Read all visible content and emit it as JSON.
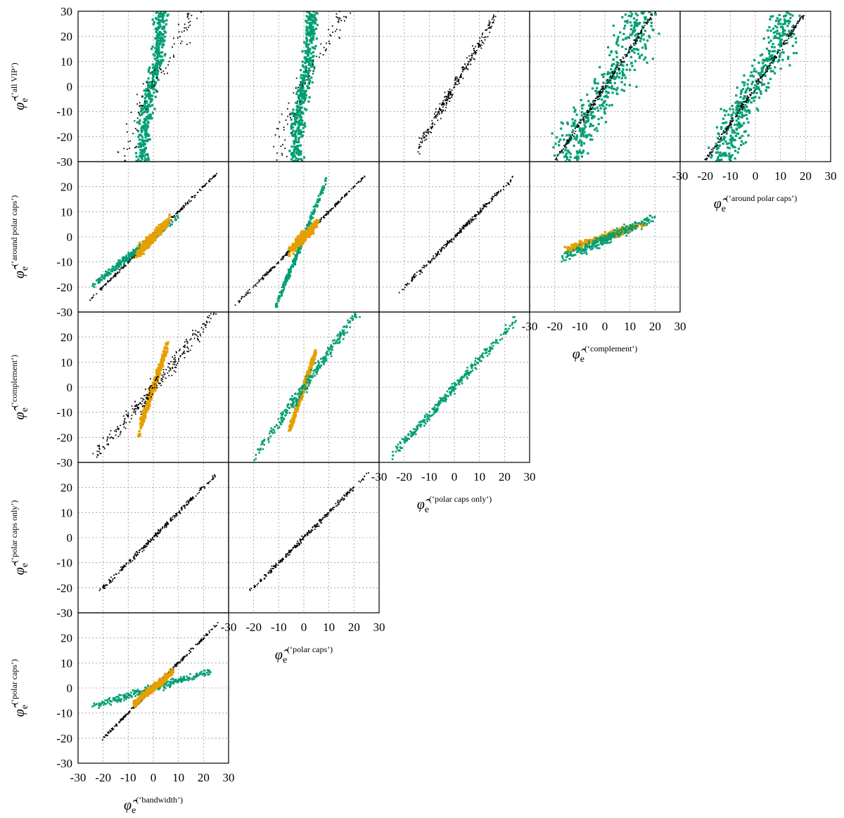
{
  "chart_data": {
    "type": "scatter",
    "layout": "lower-triangular scatter-plot matrix",
    "xlim": [
      -30,
      30
    ],
    "ylim": [
      -30,
      30
    ],
    "ticks": [
      -30,
      -20,
      -10,
      0,
      10,
      20,
      30
    ],
    "tick_labels": [
      "-30",
      "-20",
      "-10",
      "0",
      "10",
      "20",
      "30"
    ],
    "grid": true,
    "colors": {
      "black": "#000000",
      "orange": "#E69F00",
      "green": "#009E73"
    },
    "row_labels": [
      {
        "symbol": "φ̂",
        "sub": "e",
        "sup": "(‘all VIP’)"
      },
      {
        "symbol": "φ̂",
        "sub": "e",
        "sup": "(‘around polar caps’)"
      },
      {
        "symbol": "φ̂",
        "sub": "e",
        "sup": "(‘complement’)"
      },
      {
        "symbol": "φ̂",
        "sub": "e",
        "sup": "(‘polar caps only’)"
      },
      {
        "symbol": "φ̂",
        "sub": "e",
        "sup": "(‘polar caps’)"
      }
    ],
    "column_labels": [
      {
        "symbol": "φ̂",
        "sub": "e",
        "sup": "(‘bandwidth’)"
      },
      {
        "symbol": "φ̂",
        "sub": "e",
        "sup": "(‘polar caps’)"
      },
      {
        "symbol": "φ̂",
        "sub": "e",
        "sup": "(‘polar caps only’)"
      },
      {
        "symbol": "φ̂",
        "sub": "e",
        "sup": "(‘complement’)"
      },
      {
        "symbol": "φ̂",
        "sub": "e",
        "sup": "(‘around polar caps’)"
      }
    ],
    "panels": [
      {
        "row": 0,
        "col": 0,
        "series": [
          {
            "color": "green",
            "kind": "band",
            "x_at_y": [
              [
                -30,
                -4
              ],
              [
                -20,
                -4
              ],
              [
                -10,
                -3
              ],
              [
                0,
                -1
              ],
              [
                10,
                2
              ],
              [
                20,
                3
              ],
              [
                30,
                3
              ]
            ],
            "width": 4
          },
          {
            "color": "black",
            "kind": "sparse",
            "x_at_y": [
              [
                -30,
                -12
              ],
              [
                -20,
                -10
              ],
              [
                -10,
                -6
              ],
              [
                0,
                -2
              ],
              [
                10,
                5
              ],
              [
                20,
                12
              ],
              [
                30,
                16
              ]
            ],
            "width": 6
          }
        ]
      },
      {
        "row": 0,
        "col": 1,
        "series": [
          {
            "color": "green",
            "kind": "band",
            "x_at_y": [
              [
                -30,
                -3
              ],
              [
                -20,
                -3
              ],
              [
                -10,
                -2
              ],
              [
                0,
                0
              ],
              [
                10,
                2
              ],
              [
                20,
                3
              ],
              [
                30,
                3
              ]
            ],
            "width": 4
          },
          {
            "color": "black",
            "kind": "sparse",
            "x_at_y": [
              [
                -30,
                -10
              ],
              [
                -20,
                -9
              ],
              [
                -10,
                -5
              ],
              [
                0,
                -1
              ],
              [
                10,
                5
              ],
              [
                20,
                12
              ],
              [
                30,
                16
              ]
            ],
            "width": 6
          }
        ]
      },
      {
        "row": 0,
        "col": 2,
        "series": [
          {
            "color": "black",
            "kind": "line",
            "slope": 1.7,
            "intercept": 0,
            "xrange": [
              -15,
              18
            ],
            "spread": 4
          }
        ]
      },
      {
        "row": 0,
        "col": 3,
        "series": [
          {
            "color": "green",
            "kind": "band",
            "x_at_y": [
              [
                -30,
                -15
              ],
              [
                -20,
                -12
              ],
              [
                -10,
                -5
              ],
              [
                0,
                2
              ],
              [
                10,
                8
              ],
              [
                20,
                12
              ],
              [
                30,
                14
              ]
            ],
            "width": 12
          },
          {
            "color": "black",
            "kind": "line",
            "slope": 1.5,
            "intercept": 0,
            "xrange": [
              -28,
              26
            ],
            "spread": 2
          }
        ]
      },
      {
        "row": 0,
        "col": 4,
        "series": [
          {
            "color": "green",
            "kind": "band",
            "x_at_y": [
              [
                -30,
                -13
              ],
              [
                -20,
                -10
              ],
              [
                -10,
                -6
              ],
              [
                0,
                0
              ],
              [
                10,
                6
              ],
              [
                20,
                10
              ],
              [
                30,
                12
              ]
            ],
            "width": 10
          },
          {
            "color": "black",
            "kind": "line",
            "slope": 1.5,
            "intercept": 0,
            "xrange": [
              -28,
              26
            ],
            "spread": 2
          }
        ]
      },
      {
        "row": 1,
        "col": 0,
        "series": [
          {
            "color": "black",
            "kind": "line",
            "slope": 1.0,
            "intercept": 0,
            "xrange": [
              -28,
              26
            ],
            "spread": 1
          },
          {
            "color": "green",
            "kind": "line",
            "slope": 0.8,
            "intercept": 0,
            "xrange": [
              -25,
              10
            ],
            "spread": 2
          },
          {
            "color": "orange",
            "kind": "line",
            "slope": 1.0,
            "intercept": 0,
            "xrange": [
              -7,
              7
            ],
            "spread": 3
          }
        ]
      },
      {
        "row": 1,
        "col": 1,
        "series": [
          {
            "color": "black",
            "kind": "line",
            "slope": 1.0,
            "intercept": 0,
            "xrange": [
              -28,
              26
            ],
            "spread": 1
          },
          {
            "color": "green",
            "kind": "line",
            "slope": 2.5,
            "intercept": 0,
            "xrange": [
              -12,
              10
            ],
            "spread": 3
          },
          {
            "color": "orange",
            "kind": "line",
            "slope": 1.0,
            "intercept": 0,
            "xrange": [
              -6,
              6
            ],
            "spread": 3
          }
        ]
      },
      {
        "row": 1,
        "col": 2,
        "series": [
          {
            "color": "black",
            "kind": "line",
            "slope": 1.0,
            "intercept": 0,
            "xrange": [
              -22,
              24
            ],
            "spread": 1.5
          }
        ]
      },
      {
        "row": 1,
        "col": 3,
        "series": [
          {
            "color": "orange",
            "kind": "line",
            "slope": 0.33,
            "intercept": 0,
            "xrange": [
              -16,
              16
            ],
            "spread": 2
          },
          {
            "color": "green",
            "kind": "line",
            "slope": 0.45,
            "intercept": -1,
            "xrange": [
              -18,
              20
            ],
            "spread": 3
          }
        ]
      },
      {
        "row": 2,
        "col": 0,
        "series": [
          {
            "color": "orange",
            "kind": "line",
            "slope": 3.0,
            "intercept": 0,
            "xrange": [
              -6,
              6
            ],
            "spread": 4
          },
          {
            "color": "black",
            "kind": "line",
            "slope": 1.2,
            "intercept": 0,
            "xrange": [
              -25,
              26
            ],
            "spread": 5
          }
        ]
      },
      {
        "row": 2,
        "col": 1,
        "series": [
          {
            "color": "orange",
            "kind": "line",
            "slope": 3.0,
            "intercept": 0,
            "xrange": [
              -6,
              5
            ],
            "spread": 3
          },
          {
            "color": "green",
            "kind": "line",
            "slope": 1.4,
            "intercept": 0,
            "xrange": [
              -20,
              25
            ],
            "spread": 4
          }
        ]
      },
      {
        "row": 2,
        "col": 2,
        "series": [
          {
            "color": "green",
            "kind": "line",
            "slope": 1.1,
            "intercept": 0,
            "xrange": [
              -25,
              25
            ],
            "spread": 3
          }
        ]
      },
      {
        "row": 3,
        "col": 0,
        "series": [
          {
            "color": "black",
            "kind": "line",
            "slope": 1.0,
            "intercept": 0,
            "xrange": [
              -22,
              26
            ],
            "spread": 1.5
          }
        ]
      },
      {
        "row": 3,
        "col": 1,
        "series": [
          {
            "color": "black",
            "kind": "line",
            "slope": 1.0,
            "intercept": 0,
            "xrange": [
              -22,
              26
            ],
            "spread": 1.5
          }
        ]
      },
      {
        "row": 4,
        "col": 0,
        "series": [
          {
            "color": "black",
            "kind": "line",
            "slope": 1.0,
            "intercept": 0,
            "xrange": [
              -22,
              26
            ],
            "spread": 1
          },
          {
            "color": "green",
            "kind": "line",
            "slope": 0.3,
            "intercept": 0,
            "xrange": [
              -25,
              25
            ],
            "spread": 2
          },
          {
            "color": "orange",
            "kind": "line",
            "slope": 0.8,
            "intercept": 0,
            "xrange": [
              -8,
              8
            ],
            "spread": 2
          }
        ]
      }
    ]
  }
}
